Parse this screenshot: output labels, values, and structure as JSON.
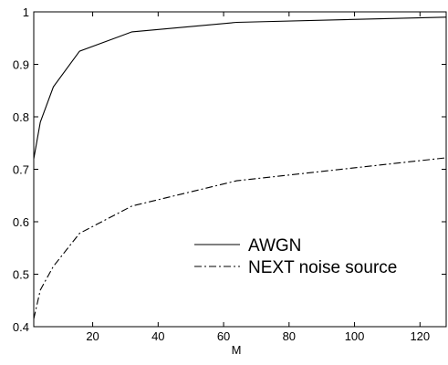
{
  "chart_data": {
    "type": "line",
    "xlabel": "M",
    "ylabel": "",
    "xlim": [
      2,
      128
    ],
    "ylim": [
      0.4,
      1.0
    ],
    "xticks": [
      20,
      40,
      60,
      80,
      100,
      120
    ],
    "yticks": [
      0.4,
      0.5,
      0.6,
      0.7,
      0.8,
      0.9,
      1.0
    ],
    "xtick_labels": [
      "20",
      "40",
      "60",
      "80",
      "100",
      "120"
    ],
    "ytick_labels": [
      "0.4",
      "0.5",
      "0.6",
      "0.7",
      "0.8",
      "0.9",
      "1"
    ],
    "grid": false,
    "legend_position": "lower-right",
    "series": [
      {
        "name": "AWGN",
        "style": "solid",
        "color": "#000000",
        "x": [
          2,
          4,
          8,
          16,
          32,
          64,
          128
        ],
        "y": [
          0.72,
          0.79,
          0.857,
          0.925,
          0.962,
          0.98,
          0.99
        ]
      },
      {
        "name": "NEXT noise source",
        "style": "dashdot",
        "color": "#000000",
        "x": [
          2,
          4,
          8,
          16,
          32,
          64,
          128
        ],
        "y": [
          0.415,
          0.47,
          0.515,
          0.578,
          0.63,
          0.678,
          0.722
        ]
      }
    ]
  }
}
